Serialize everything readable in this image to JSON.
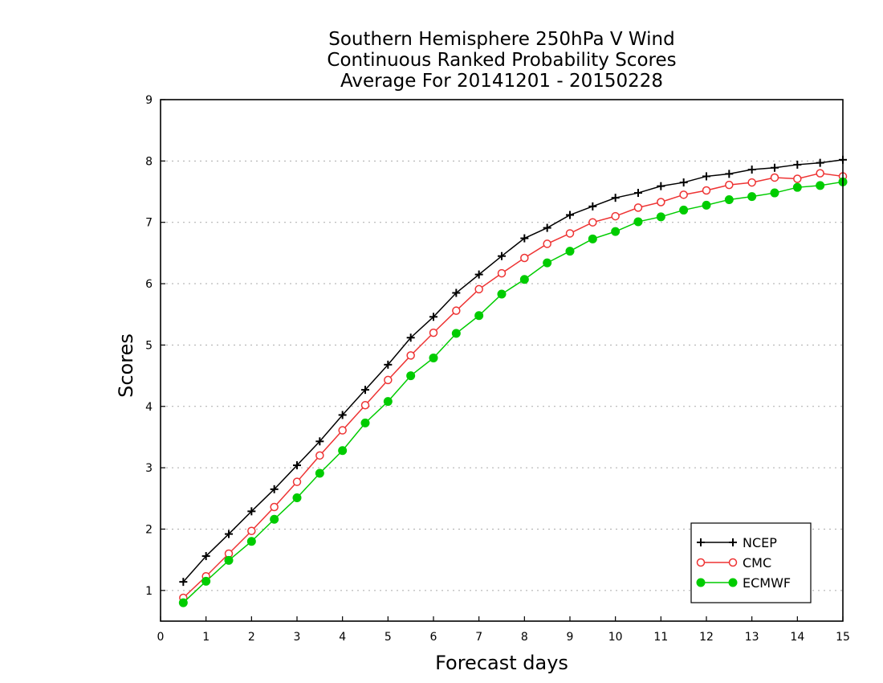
{
  "chart_data": {
    "type": "line",
    "title": [
      "Southern Hemisphere 250hPa V Wind",
      "Continuous Ranked Probability Scores",
      "Average For 20141201 - 20150228"
    ],
    "xlabel": "Forecast days",
    "ylabel": "Scores",
    "xlim": [
      0,
      15
    ],
    "ylim": [
      0.5,
      9
    ],
    "xticks": [
      "0",
      "1",
      "2",
      "3",
      "4",
      "5",
      "6",
      "7",
      "8",
      "9",
      "10",
      "11",
      "12",
      "13",
      "14",
      "15"
    ],
    "yticks": [
      "1",
      "2",
      "3",
      "4",
      "5",
      "6",
      "7",
      "8",
      "9"
    ],
    "grid": "horizontal dotted",
    "legend_position": "bottom-right",
    "x": [
      0.5,
      1,
      1.5,
      2,
      2.5,
      3,
      3.5,
      4,
      4.5,
      5,
      5.5,
      6,
      6.5,
      7,
      7.5,
      8,
      8.5,
      9,
      9.5,
      10,
      10.5,
      11,
      11.5,
      12,
      12.5,
      13,
      13.5,
      14,
      14.5,
      15
    ],
    "series": [
      {
        "name": "NCEP",
        "color": "#000000",
        "marker": "plus",
        "values": [
          1.14,
          1.56,
          1.92,
          2.29,
          2.65,
          3.04,
          3.43,
          3.86,
          4.27,
          4.68,
          5.12,
          5.46,
          5.85,
          6.15,
          6.45,
          6.74,
          6.91,
          7.12,
          7.26,
          7.4,
          7.48,
          7.59,
          7.65,
          7.75,
          7.79,
          7.86,
          7.89,
          7.94,
          7.97,
          8.02
        ]
      },
      {
        "name": "CMC",
        "color": "#ee3333",
        "marker": "open-circle",
        "values": [
          0.88,
          1.23,
          1.6,
          1.97,
          2.36,
          2.77,
          3.2,
          3.61,
          4.02,
          4.43,
          4.83,
          5.2,
          5.56,
          5.91,
          6.17,
          6.42,
          6.65,
          6.82,
          7.0,
          7.1,
          7.24,
          7.33,
          7.45,
          7.52,
          7.61,
          7.65,
          7.73,
          7.71,
          7.8,
          7.75
        ]
      },
      {
        "name": "ECMWF",
        "color": "#00cc00",
        "marker": "filled-circle",
        "values": [
          0.8,
          1.15,
          1.49,
          1.8,
          2.16,
          2.51,
          2.91,
          3.28,
          3.73,
          4.08,
          4.5,
          4.79,
          5.19,
          5.48,
          5.83,
          6.07,
          6.34,
          6.53,
          6.73,
          6.85,
          7.01,
          7.09,
          7.2,
          7.28,
          7.37,
          7.42,
          7.48,
          7.57,
          7.6,
          7.66
        ]
      }
    ]
  }
}
